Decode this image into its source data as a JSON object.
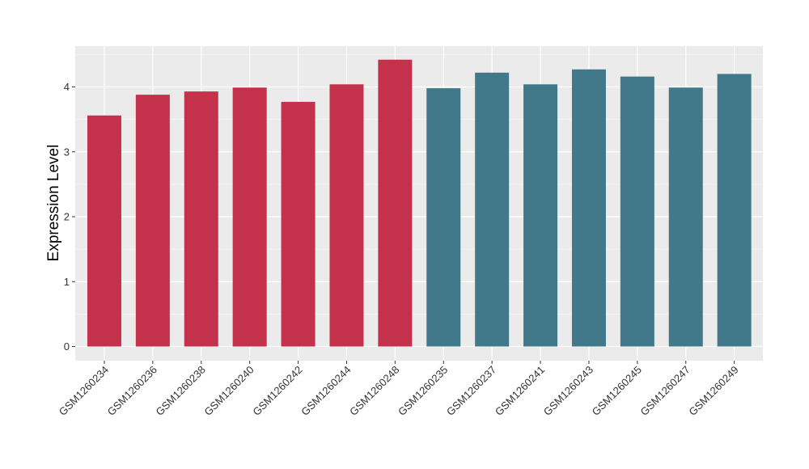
{
  "chart_data": {
    "type": "bar",
    "ylabel": "Expression Level",
    "xlabel": "",
    "ylim": [
      0,
      4.6
    ],
    "yticks": [
      0,
      1,
      2,
      3,
      4
    ],
    "grid": true,
    "legend": "none",
    "colors": {
      "group_a": "#C4314B",
      "group_b": "#41788A",
      "panel": "#EBEBEB",
      "grid": "#FFFFFF"
    },
    "categories": [
      "GSM1260234",
      "GSM1260236",
      "GSM1260238",
      "GSM1260240",
      "GSM1260242",
      "GSM1260244",
      "GSM1260248",
      "GSM1260235",
      "GSM1260237",
      "GSM1260241",
      "GSM1260243",
      "GSM1260245",
      "GSM1260247",
      "GSM1260249"
    ],
    "values": [
      3.56,
      3.88,
      3.93,
      3.99,
      3.77,
      4.04,
      4.42,
      3.98,
      4.22,
      4.04,
      4.27,
      4.16,
      3.99,
      4.2
    ],
    "groups": [
      "a",
      "a",
      "a",
      "a",
      "a",
      "a",
      "a",
      "b",
      "b",
      "b",
      "b",
      "b",
      "b",
      "b"
    ]
  }
}
